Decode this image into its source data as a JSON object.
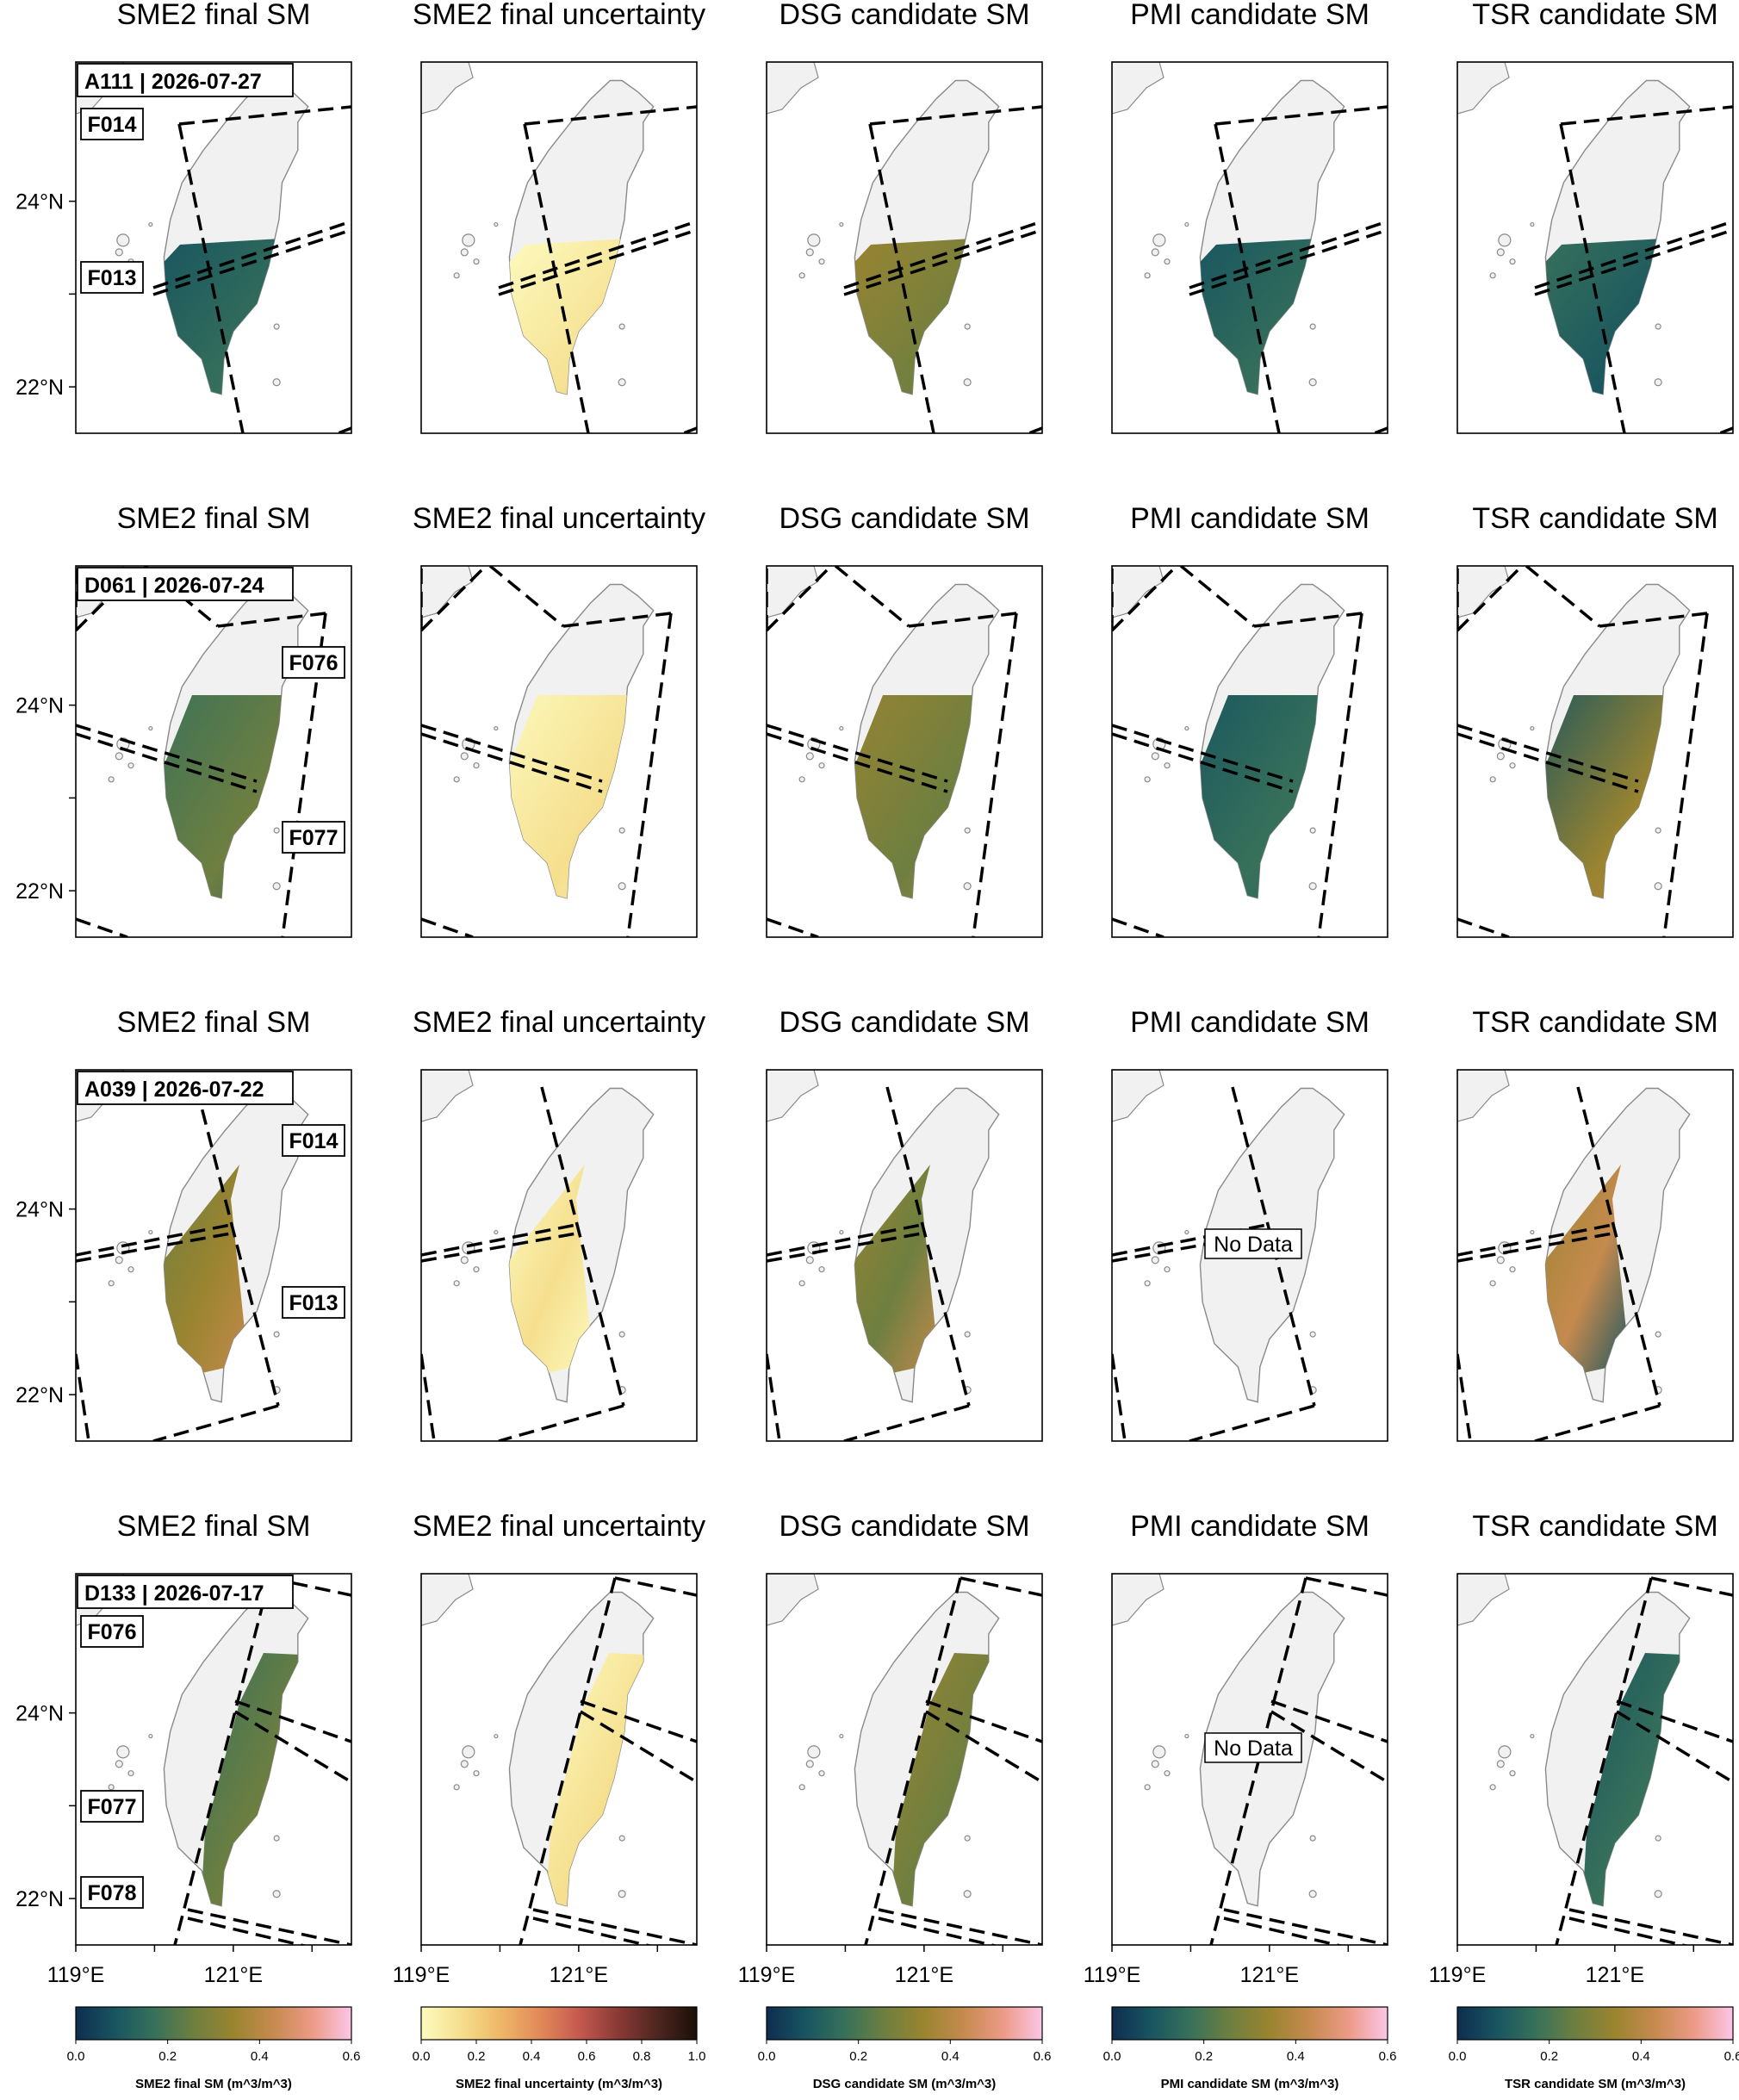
{
  "colors": {
    "land": "#f1f1f1",
    "coast": "#8a8a8a",
    "frame": "#000000",
    "batlow": [
      "#0e2d4f",
      "#185560",
      "#38715a",
      "#6e7f40",
      "#9a8430",
      "#c58a4e",
      "#ec9a86",
      "#fbc6e6"
    ],
    "lajolla": [
      "#fdfbc0",
      "#f5df8e",
      "#eeb868",
      "#e28a59",
      "#c55a4f",
      "#8a3a36",
      "#4e2620",
      "#1a1008"
    ]
  },
  "chart_data": {
    "type": "heatmap",
    "grid": false,
    "rows": [
      {
        "badge": "A111 | 2026-07-27",
        "frame_labels": [
          "F014",
          "F013"
        ],
        "panels": [
          {
            "title": "SME2 final SM",
            "no_data": null
          },
          {
            "title": "SME2 final uncertainty",
            "no_data": null
          },
          {
            "title": "DSG candidate SM",
            "no_data": null
          },
          {
            "title": "PMI candidate SM",
            "no_data": null
          },
          {
            "title": "TSR candidate SM",
            "no_data": null
          }
        ]
      },
      {
        "badge": "D061 | 2026-07-24",
        "frame_labels": [
          "F076",
          "F077"
        ],
        "panels": [
          {
            "title": "SME2 final SM",
            "no_data": null
          },
          {
            "title": "SME2 final uncertainty",
            "no_data": null
          },
          {
            "title": "DSG candidate SM",
            "no_data": null
          },
          {
            "title": "PMI candidate SM",
            "no_data": null
          },
          {
            "title": "TSR candidate SM",
            "no_data": null
          }
        ]
      },
      {
        "badge": "A039 | 2026-07-22",
        "frame_labels": [
          "F014",
          "F013"
        ],
        "panels": [
          {
            "title": "SME2 final SM",
            "no_data": null
          },
          {
            "title": "SME2 final uncertainty",
            "no_data": null
          },
          {
            "title": "DSG candidate SM",
            "no_data": null
          },
          {
            "title": "PMI candidate SM",
            "no_data": "No Data"
          },
          {
            "title": "TSR candidate SM",
            "no_data": null
          }
        ]
      },
      {
        "badge": "D133 | 2026-07-17",
        "frame_labels": [
          "F076",
          "F077",
          "F078"
        ],
        "panels": [
          {
            "title": "SME2 final SM",
            "no_data": null
          },
          {
            "title": "SME2 final uncertainty",
            "no_data": null
          },
          {
            "title": "DSG candidate SM",
            "no_data": null
          },
          {
            "title": "PMI candidate SM",
            "no_data": "No Data"
          },
          {
            "title": "TSR candidate SM",
            "no_data": null
          }
        ]
      }
    ],
    "lon_ticks": [
      "119°E",
      "121°E"
    ],
    "lat_ticks": [
      "24°N",
      "22°N"
    ],
    "lon_range": [
      119,
      122.5
    ],
    "lat_range": [
      21.5,
      25.5
    ],
    "colorbars": [
      {
        "label": "SME2 final SM (m^3/m^3)",
        "range": [
          0.0,
          0.6
        ],
        "ticks": [
          "0.0",
          "0.2",
          "0.4",
          "0.6"
        ],
        "cmap": "batlow"
      },
      {
        "label": "SME2 final uncertainty (m^3/m^3)",
        "range": [
          0.0,
          1.0
        ],
        "ticks": [
          "0.0",
          "0.2",
          "0.4",
          "0.6",
          "0.8",
          "1.0"
        ],
        "cmap": "lajolla"
      },
      {
        "label": "DSG candidate SM (m^3/m^3)",
        "range": [
          0.0,
          0.6
        ],
        "ticks": [
          "0.0",
          "0.2",
          "0.4",
          "0.6"
        ],
        "cmap": "batlow"
      },
      {
        "label": "PMI candidate SM (m^3/m^3)",
        "range": [
          0.0,
          0.6
        ],
        "ticks": [
          "0.0",
          "0.2",
          "0.4",
          "0.6"
        ],
        "cmap": "batlow"
      },
      {
        "label": "TSR candidate SM (m^3/m^3)",
        "range": [
          0.0,
          0.6
        ],
        "ticks": [
          "0.0",
          "0.2",
          "0.4",
          "0.6"
        ],
        "cmap": "batlow"
      }
    ]
  }
}
